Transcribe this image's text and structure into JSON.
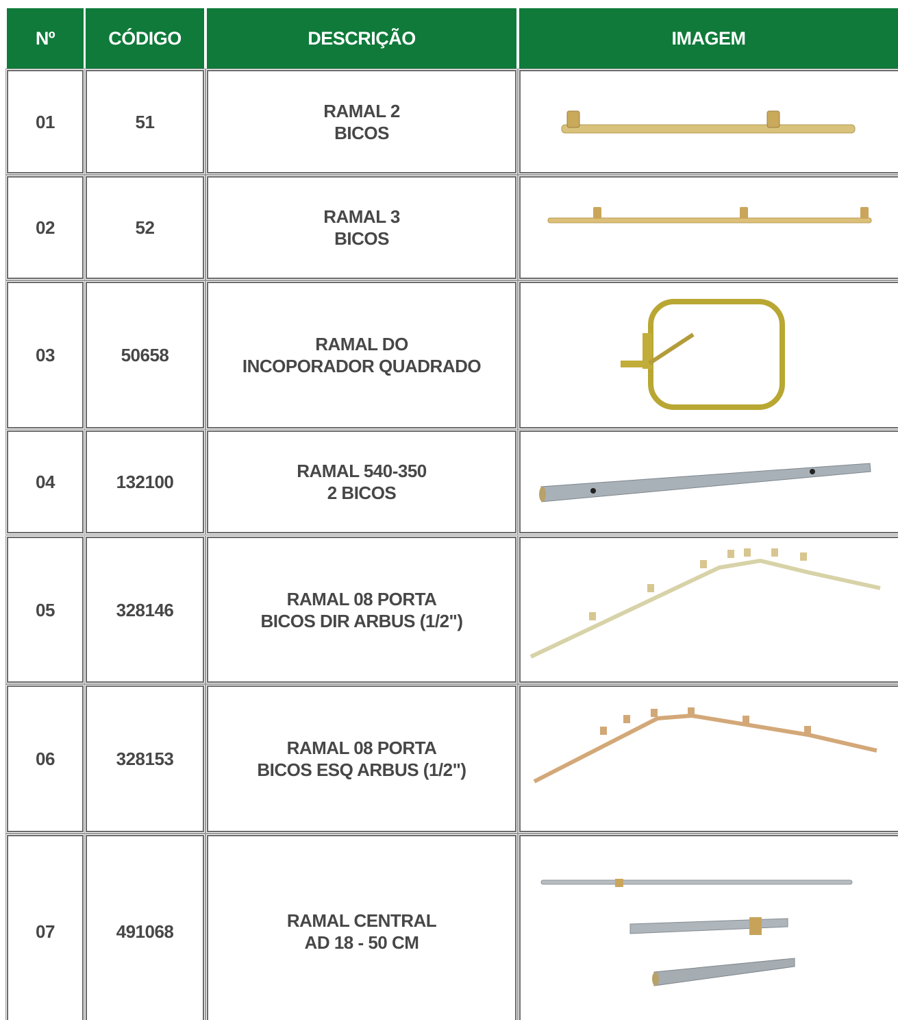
{
  "table": {
    "header": [
      "Nº",
      "CÓDIGO",
      "DESCRIÇÃO",
      "IMAGEM"
    ],
    "rows": [
      {
        "num": "01",
        "code": "51",
        "description": [
          "RAMAL 2",
          "BICOS"
        ]
      },
      {
        "num": "02",
        "code": "52",
        "description": [
          "RAMAL 3",
          "BICOS"
        ]
      },
      {
        "num": "03",
        "code": "50658",
        "description": [
          "RAMAL DO",
          "INCOPORADOR QUADRADO"
        ]
      },
      {
        "num": "04",
        "code": "132100",
        "description": [
          "RAMAL 540-350",
          "2 BICOS"
        ]
      },
      {
        "num": "05",
        "code": "328146",
        "description": [
          "RAMAL 08 PORTA",
          "BICOS DIR ARBUS (1/2\")"
        ]
      },
      {
        "num": "06",
        "code": "328153",
        "description": [
          "RAMAL 08 PORTA",
          "BICOS ESQ ARBUS (1/2\")"
        ]
      },
      {
        "num": "07",
        "code": "491068",
        "description": [
          "RAMAL CENTRAL",
          "AD 18 - 50 CM"
        ]
      }
    ]
  }
}
